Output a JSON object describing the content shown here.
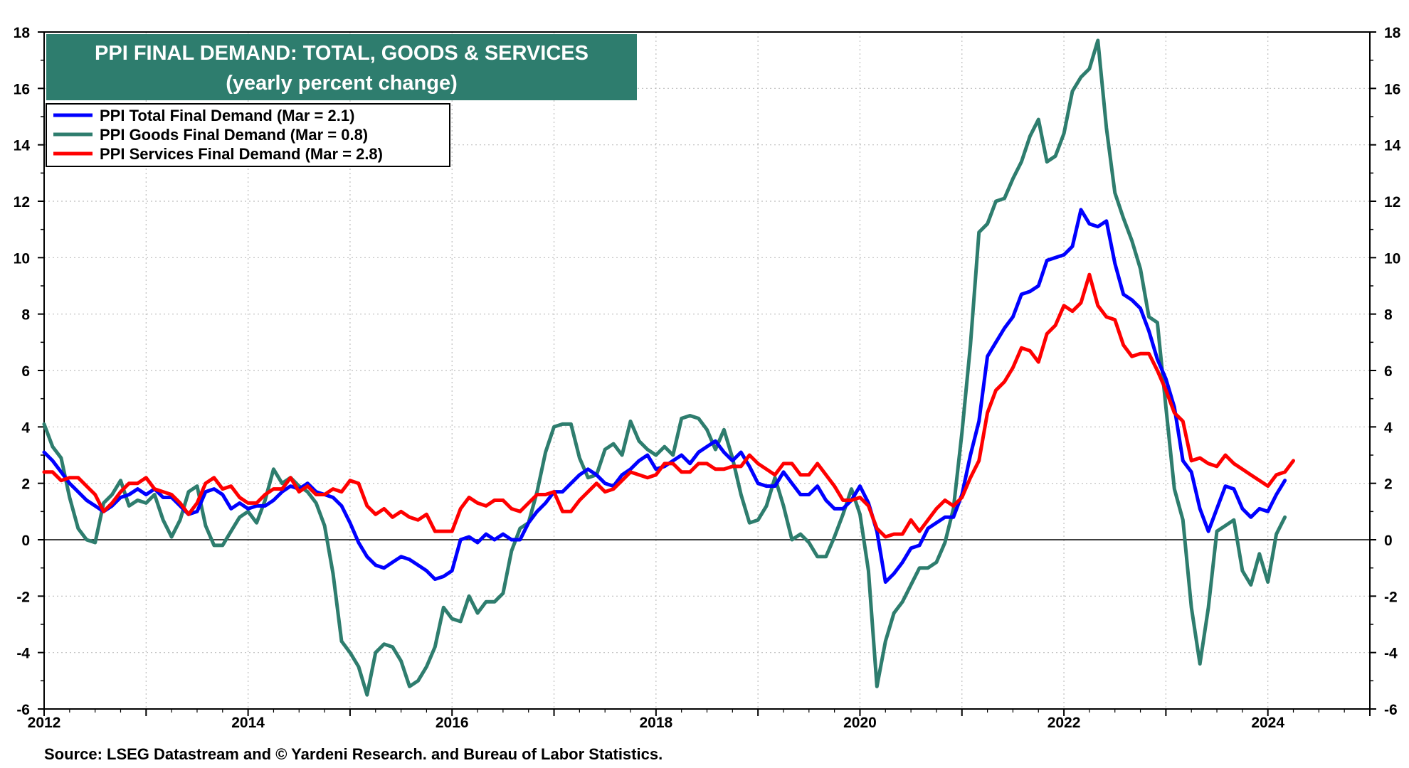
{
  "chart_data": {
    "type": "line",
    "title": "PPI FINAL DEMAND: TOTAL, GOODS & SERVICES",
    "subtitle": "(yearly percent change)",
    "source": "Source: LSEG Datastream and © Yardeni Research. and Bureau of Labor Statistics.",
    "x_range": [
      2012,
      2025
    ],
    "x_ticks": [
      "2012",
      "2014",
      "2016",
      "2018",
      "2020",
      "2022",
      "2024"
    ],
    "ylim": [
      -6,
      18
    ],
    "y_ticks": [
      "-6",
      "-4",
      "-2",
      "0",
      "2",
      "4",
      "6",
      "8",
      "10",
      "12",
      "14",
      "16",
      "18"
    ],
    "grid": true,
    "legend_position": "top-left",
    "series": [
      {
        "name": "PPI Total Final Demand (Mar = 2.1)",
        "color": "#0000ff",
        "start_year": 2012,
        "step_months": 1,
        "values": [
          3.1,
          2.8,
          2.4,
          2.0,
          1.7,
          1.4,
          1.2,
          1.0,
          1.2,
          1.5,
          1.6,
          1.8,
          1.6,
          1.8,
          1.5,
          1.5,
          1.2,
          0.9,
          1.0,
          1.7,
          1.8,
          1.6,
          1.1,
          1.3,
          1.1,
          1.2,
          1.2,
          1.4,
          1.7,
          1.9,
          1.8,
          2.0,
          1.7,
          1.6,
          1.5,
          1.2,
          0.6,
          -0.1,
          -0.6,
          -0.9,
          -1.0,
          -0.8,
          -0.6,
          -0.7,
          -0.9,
          -1.1,
          -1.4,
          -1.3,
          -1.1,
          0.0,
          0.1,
          -0.1,
          0.2,
          0.0,
          0.2,
          0.0,
          0.0,
          0.6,
          1.0,
          1.3,
          1.7,
          1.7,
          2.0,
          2.3,
          2.5,
          2.3,
          2.0,
          1.9,
          2.3,
          2.5,
          2.8,
          3.0,
          2.5,
          2.6,
          2.8,
          3.0,
          2.7,
          3.1,
          3.3,
          3.5,
          3.1,
          2.8,
          3.1,
          2.6,
          2.0,
          1.9,
          1.9,
          2.4,
          2.0,
          1.6,
          1.6,
          1.9,
          1.4,
          1.1,
          1.1,
          1.4,
          1.9,
          1.3,
          0.3,
          -1.5,
          -1.2,
          -0.8,
          -0.3,
          -0.2,
          0.4,
          0.6,
          0.8,
          0.8,
          1.6,
          3.0,
          4.2,
          6.5,
          7.0,
          7.5,
          7.9,
          8.7,
          8.8,
          9.0,
          9.9,
          10.0,
          10.1,
          10.4,
          11.7,
          11.2,
          11.1,
          11.3,
          9.8,
          8.7,
          8.5,
          8.2,
          7.4,
          6.4,
          5.7,
          4.7,
          2.8,
          2.4,
          1.1,
          0.3,
          1.1,
          1.9,
          1.8,
          1.1,
          0.8,
          1.1,
          1.0,
          1.6,
          2.1
        ]
      },
      {
        "name": "PPI Goods Final Demand (Mar = 0.8)",
        "color": "#2e7d6e",
        "start_year": 2012,
        "step_months": 1,
        "values": [
          4.1,
          3.3,
          2.9,
          1.5,
          0.4,
          0.0,
          -0.1,
          1.3,
          1.6,
          2.1,
          1.2,
          1.4,
          1.3,
          1.6,
          0.7,
          0.1,
          0.7,
          1.7,
          1.9,
          0.5,
          -0.2,
          -0.2,
          0.3,
          0.8,
          1.0,
          0.6,
          1.4,
          2.5,
          2.0,
          2.2,
          1.9,
          1.7,
          1.3,
          0.5,
          -1.2,
          -3.6,
          -4.0,
          -4.5,
          -5.5,
          -4.0,
          -3.7,
          -3.8,
          -4.3,
          -5.2,
          -5.0,
          -4.5,
          -3.8,
          -2.4,
          -2.8,
          -2.9,
          -2.0,
          -2.6,
          -2.2,
          -2.2,
          -1.9,
          -0.4,
          0.4,
          0.6,
          1.7,
          3.1,
          4.0,
          4.1,
          4.1,
          2.9,
          2.2,
          2.3,
          3.2,
          3.4,
          3.0,
          4.2,
          3.5,
          3.2,
          3.0,
          3.3,
          3.0,
          4.3,
          4.4,
          4.3,
          3.9,
          3.2,
          3.9,
          2.9,
          1.6,
          0.6,
          0.7,
          1.2,
          2.2,
          1.2,
          0.0,
          0.2,
          -0.1,
          -0.6,
          -0.6,
          0.1,
          0.9,
          1.8,
          0.9,
          -1.1,
          -5.2,
          -3.6,
          -2.6,
          -2.2,
          -1.6,
          -1.0,
          -1.0,
          -0.8,
          -0.1,
          1.1,
          3.8,
          6.9,
          10.9,
          11.2,
          12.0,
          12.1,
          12.8,
          13.4,
          14.3,
          14.9,
          13.4,
          13.6,
          14.4,
          15.9,
          16.4,
          16.7,
          17.7,
          14.6,
          12.3,
          11.4,
          10.6,
          9.6,
          7.9,
          7.7,
          4.7,
          1.8,
          0.7,
          -2.4,
          -4.4,
          -2.4,
          0.3,
          0.5,
          0.7,
          -1.1,
          -1.6,
          -0.5,
          -1.5,
          0.2,
          0.8
        ]
      },
      {
        "name": "PPI Services Final Demand (Mar = 2.8)",
        "color": "#ff0000",
        "start_year": 2012,
        "step_months": 1,
        "values": [
          2.4,
          2.4,
          2.1,
          2.2,
          2.2,
          1.9,
          1.6,
          1.0,
          1.3,
          1.7,
          2.0,
          2.0,
          2.2,
          1.8,
          1.7,
          1.6,
          1.3,
          0.9,
          1.3,
          2.0,
          2.2,
          1.8,
          1.9,
          1.5,
          1.3,
          1.3,
          1.6,
          1.8,
          1.8,
          2.2,
          1.7,
          1.9,
          1.6,
          1.6,
          1.8,
          1.7,
          2.1,
          2.0,
          1.2,
          0.9,
          1.1,
          0.8,
          1.0,
          0.8,
          0.7,
          0.9,
          0.3,
          0.3,
          0.3,
          1.1,
          1.5,
          1.3,
          1.2,
          1.4,
          1.4,
          1.1,
          1.0,
          1.3,
          1.6,
          1.6,
          1.7,
          1.0,
          1.0,
          1.4,
          1.7,
          2.0,
          1.7,
          1.8,
          2.1,
          2.4,
          2.3,
          2.2,
          2.3,
          2.7,
          2.7,
          2.4,
          2.4,
          2.7,
          2.7,
          2.5,
          2.5,
          2.6,
          2.6,
          3.0,
          2.7,
          2.5,
          2.3,
          2.7,
          2.7,
          2.3,
          2.3,
          2.7,
          2.3,
          1.9,
          1.4,
          1.4,
          1.5,
          1.2,
          0.4,
          0.1,
          0.2,
          0.2,
          0.7,
          0.3,
          0.7,
          1.1,
          1.4,
          1.2,
          1.5,
          2.2,
          2.8,
          4.5,
          5.3,
          5.6,
          6.1,
          6.8,
          6.7,
          6.3,
          7.3,
          7.6,
          8.3,
          8.1,
          8.4,
          9.4,
          8.3,
          7.9,
          7.8,
          6.9,
          6.5,
          6.6,
          6.6,
          6.0,
          5.3,
          4.5,
          4.2,
          2.8,
          2.9,
          2.7,
          2.6,
          3.0,
          2.7,
          2.5,
          2.3,
          2.1,
          1.9,
          2.3,
          2.4,
          2.8
        ]
      }
    ]
  }
}
